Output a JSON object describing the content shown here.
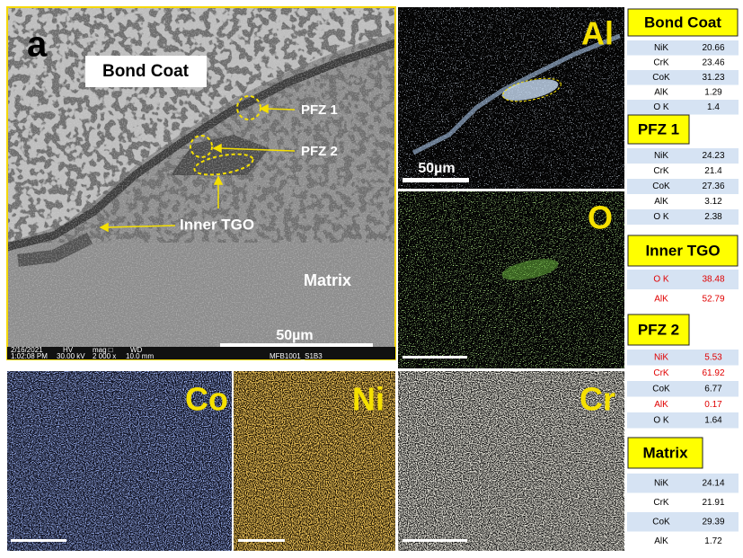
{
  "sem_image": {
    "panel_label": "a",
    "annotations": {
      "bond_coat": "Bond Coat",
      "pfz1": "PFZ 1",
      "pfz2": "PFZ 2",
      "inner_tgo": "Inner TGO",
      "matrix": "Matrix"
    },
    "scale_bar": "50µm",
    "info_bar": {
      "date": "2/16/2021",
      "time": "1:02:08 PM",
      "hv_label": "HV",
      "hv": "30.00 kV",
      "mag_label": "mag □",
      "mag": "2 000 x",
      "wd_label": "WD",
      "wd": "10.0 mm",
      "sample": "MFB1001_S1B3"
    }
  },
  "element_maps": [
    {
      "element": "Al",
      "scale_bar": "50µm"
    },
    {
      "element": "O"
    },
    {
      "element": "Co"
    },
    {
      "element": "Ni"
    },
    {
      "element": "Cr"
    }
  ],
  "tables": [
    {
      "title": "Bond Coat",
      "rows": [
        {
          "element": "NiK",
          "value": 20.66
        },
        {
          "element": "CrK",
          "value": 23.46
        },
        {
          "element": "CoK",
          "value": 31.23
        },
        {
          "element": "AlK",
          "value": 1.29
        },
        {
          "element": "O K",
          "value": 1.4
        }
      ]
    },
    {
      "title": "PFZ 1",
      "rows": [
        {
          "element": "NiK",
          "value": 24.23
        },
        {
          "element": "CrK",
          "value": 21.4
        },
        {
          "element": "CoK",
          "value": 27.36
        },
        {
          "element": "AlK",
          "value": 3.12
        },
        {
          "element": "O K",
          "value": 2.38
        }
      ]
    },
    {
      "title": "Inner TGO",
      "rows": [
        {
          "element": "O K",
          "value": 38.48,
          "red": true
        },
        {
          "element": "AlK",
          "value": 52.79,
          "red": true
        }
      ]
    },
    {
      "title": "PFZ 2",
      "rows": [
        {
          "element": "NiK",
          "value": 5.53,
          "red": true
        },
        {
          "element": "CrK",
          "value": 61.92,
          "red": true
        },
        {
          "element": "CoK",
          "value": 6.77
        },
        {
          "element": "AlK",
          "value": 0.17,
          "red": true
        },
        {
          "element": "O K",
          "value": 1.64
        }
      ]
    },
    {
      "title": "Matrix",
      "rows": [
        {
          "element": "NiK",
          "value": 24.14
        },
        {
          "element": "CrK",
          "value": 21.91
        },
        {
          "element": "CoK",
          "value": 29.39
        },
        {
          "element": "AlK",
          "value": 1.72
        }
      ]
    }
  ]
}
